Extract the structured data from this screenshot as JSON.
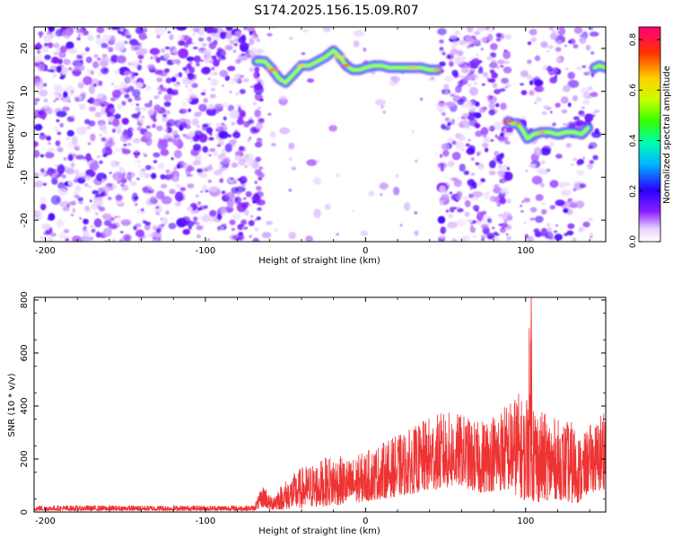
{
  "title": "S174.2025.156.15.09.R07",
  "chart_data": [
    {
      "type": "heatmap",
      "xlabel": "Height of straight line (km)",
      "ylabel": "Frequency (Hz)",
      "xlim": [
        -207,
        150
      ],
      "ylim": [
        -25,
        25
      ],
      "x_ticks": [
        -200,
        -100,
        0,
        100
      ],
      "y_ticks": [
        -20,
        -10,
        0,
        10,
        20
      ],
      "colorbar": {
        "label": "Normalized spectral amplitude",
        "range": [
          0,
          0.85
        ],
        "ticks": [
          0.0,
          0.2,
          0.4,
          0.6,
          0.8
        ]
      },
      "noise_regions": [
        {
          "x_range": [
            -207,
            -65
          ],
          "density": "high"
        },
        {
          "x_range": [
            -65,
            47
          ],
          "density": "low"
        },
        {
          "x_range": [
            47,
            90
          ],
          "density": "high"
        },
        {
          "x_range": [
            97,
            145
          ],
          "density": "medium"
        }
      ],
      "ridge_segments": [
        {
          "x": [
            -68,
            -63,
            -58,
            -54,
            -50,
            -45,
            -40,
            -35,
            -30,
            -25,
            -20,
            -16,
            -12,
            -8,
            -4,
            0,
            5,
            10,
            15,
            20,
            25,
            30,
            35,
            40,
            45
          ],
          "y": [
            17,
            17,
            15,
            13,
            12,
            14,
            16,
            16,
            17,
            18,
            19.5,
            18,
            16,
            15,
            15,
            15.5,
            16,
            16,
            15.5,
            15.5,
            15.5,
            15.5,
            15.5,
            15,
            15
          ]
        },
        {
          "x": [
            89,
            92,
            95,
            98,
            101,
            105,
            110,
            115,
            120,
            125,
            130,
            135,
            139
          ],
          "y": [
            3,
            2.5,
            2.5,
            1,
            -1,
            0,
            0.5,
            0.5,
            0,
            0.5,
            0.5,
            0,
            1.5
          ]
        },
        {
          "x": [
            143,
            146,
            150
          ],
          "y": [
            15.5,
            16,
            15.5
          ]
        }
      ]
    },
    {
      "type": "line",
      "xlabel": "Height of straight line (km)",
      "ylabel": "SNR (10 * v/v)",
      "xlim": [
        -207,
        150
      ],
      "ylim": [
        0,
        810
      ],
      "x_ticks": [
        -200,
        -100,
        0,
        100
      ],
      "y_ticks": [
        0,
        200,
        400,
        600,
        800
      ],
      "series_color": "#ee3333",
      "envelope_x": [
        -207,
        -150,
        -100,
        -70,
        -63,
        -60,
        -50,
        -40,
        -30,
        -20,
        -10,
        0,
        10,
        20,
        30,
        40,
        50,
        60,
        70,
        80,
        90,
        95,
        100,
        103,
        105,
        110,
        120,
        130,
        135,
        140,
        145,
        150
      ],
      "envelope_min": [
        5,
        5,
        5,
        5,
        20,
        8,
        10,
        15,
        20,
        25,
        30,
        40,
        50,
        60,
        70,
        80,
        90,
        100,
        70,
        80,
        80,
        60,
        40,
        60,
        30,
        40,
        50,
        30,
        40,
        80,
        70,
        90
      ],
      "envelope_max": [
        25,
        25,
        25,
        25,
        110,
        60,
        120,
        170,
        190,
        220,
        200,
        230,
        260,
        290,
        320,
        360,
        380,
        370,
        340,
        380,
        420,
        460,
        400,
        810,
        440,
        380,
        350,
        340,
        280,
        330,
        350,
        440
      ]
    }
  ]
}
